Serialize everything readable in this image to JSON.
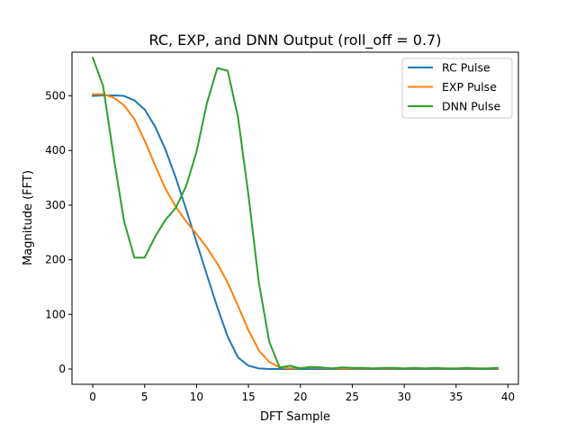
{
  "chart_data": {
    "type": "line",
    "title": "RC, EXP, and DNN Output (roll_off = 0.7)",
    "xlabel": "DFT Sample",
    "ylabel": "Magnitude (FFT)",
    "xlim": [
      -2,
      41
    ],
    "ylim": [
      -28,
      580
    ],
    "xticks": [
      0,
      5,
      10,
      15,
      20,
      25,
      30,
      35,
      40
    ],
    "yticks": [
      0,
      100,
      200,
      300,
      400,
      500
    ],
    "grid": false,
    "legend_position": "top-right",
    "x": [
      0,
      1,
      2,
      3,
      4,
      5,
      6,
      7,
      8,
      9,
      10,
      11,
      12,
      13,
      14,
      15,
      16,
      17,
      18,
      19,
      20,
      21,
      22,
      23,
      24,
      25,
      26,
      27,
      28,
      29,
      30,
      31,
      32,
      33,
      34,
      35,
      36,
      37,
      38,
      39
    ],
    "series": [
      {
        "name": "RC Pulse",
        "color": "#1f77b4",
        "values": [
          500,
          501,
          501,
          500,
          492,
          475,
          444,
          402,
          350,
          292,
          232,
          172,
          113,
          59,
          21,
          6,
          1,
          0,
          0,
          0,
          0,
          0,
          0,
          0,
          0,
          0,
          0,
          0,
          0,
          0,
          0,
          0,
          0,
          0,
          0,
          0,
          0,
          0,
          0,
          0
        ]
      },
      {
        "name": "EXP Pulse",
        "color": "#ff7f0e",
        "values": [
          503,
          503,
          497,
          483,
          458,
          418,
          373,
          330,
          297,
          270,
          247,
          222,
          193,
          158,
          115,
          71,
          34,
          13,
          3,
          1,
          2,
          3,
          2,
          1,
          1,
          1,
          1,
          1,
          1,
          1,
          1,
          1,
          1,
          1,
          1,
          1,
          1,
          1,
          1,
          1
        ]
      },
      {
        "name": "DNN Pulse",
        "color": "#2ca02c",
        "values": [
          570,
          518,
          390,
          272,
          204,
          204,
          242,
          273,
          295,
          335,
          398,
          487,
          551,
          546,
          460,
          318,
          158,
          50,
          3,
          6,
          1,
          4,
          3,
          1,
          3,
          2,
          2,
          1,
          2,
          2,
          1,
          2,
          1,
          2,
          1,
          1,
          2,
          1,
          1,
          2
        ]
      }
    ]
  }
}
